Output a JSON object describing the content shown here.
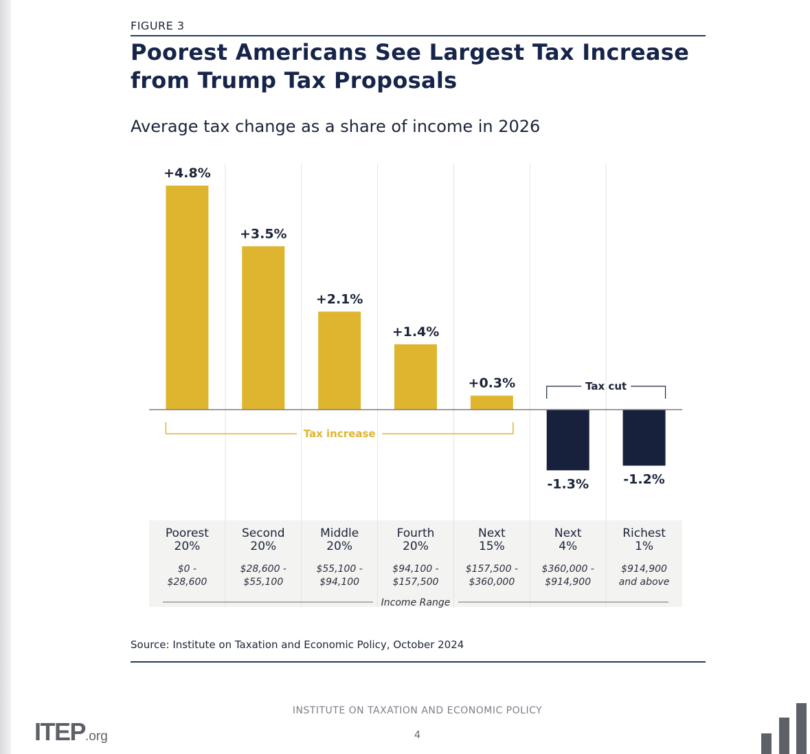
{
  "figure_label": "FIGURE 3",
  "title": "Poorest Americans See Largest Tax Increase from Trump Tax Proposals",
  "subtitle": "Average tax change as a share of income in 2026",
  "source": "Source: Institute on Taxation and Economic Policy, October 2024",
  "footer": {
    "org": "INSTITUTE ON TAXATION AND ECONOMIC POLICY",
    "page": "4",
    "logo_main": "ITEP",
    "logo_suffix": ".org"
  },
  "colors": {
    "increase": "#dfb530",
    "cut": "#17213b",
    "grid": "#e3e3e3",
    "axis": "#7a7a7a",
    "label_band": "#f3f3f2",
    "logo": "#5d6067"
  },
  "chart_data": {
    "type": "bar",
    "title": "Poorest Americans See Largest Tax Increase from Trump Tax Proposals",
    "subtitle": "Average tax change as a share of income in 2026",
    "xlabel": "Income Range",
    "ylabel": "",
    "ylim": [
      -1.5,
      5.0
    ],
    "grid": "vertical separators",
    "categories": [
      {
        "group": [
          "Poorest",
          "20%"
        ],
        "range": [
          "$0 -",
          "$28,600"
        ]
      },
      {
        "group": [
          "Second",
          "20%"
        ],
        "range": [
          "$28,600 -",
          "$55,100"
        ]
      },
      {
        "group": [
          "Middle",
          "20%"
        ],
        "range": [
          "$55,100 -",
          "$94,100"
        ]
      },
      {
        "group": [
          "Fourth",
          "20%"
        ],
        "range": [
          "$94,100 -",
          "$157,500"
        ]
      },
      {
        "group": [
          "Next",
          "15%"
        ],
        "range": [
          "$157,500 -",
          "$360,000"
        ]
      },
      {
        "group": [
          "Next",
          "4%"
        ],
        "range": [
          "$360,000 -",
          "$914,900"
        ]
      },
      {
        "group": [
          "Richest",
          "1%"
        ],
        "range": [
          "$914,900",
          "and above"
        ]
      }
    ],
    "values": [
      4.8,
      3.5,
      2.1,
      1.4,
      0.3,
      -1.3,
      -1.2
    ],
    "value_labels": [
      "+4.8%",
      "+3.5%",
      "+2.1%",
      "+1.4%",
      "+0.3%",
      "-1.3%",
      "-1.2%"
    ],
    "annotations": {
      "increase_label": "Tax increase",
      "cut_label": "Tax cut"
    }
  }
}
